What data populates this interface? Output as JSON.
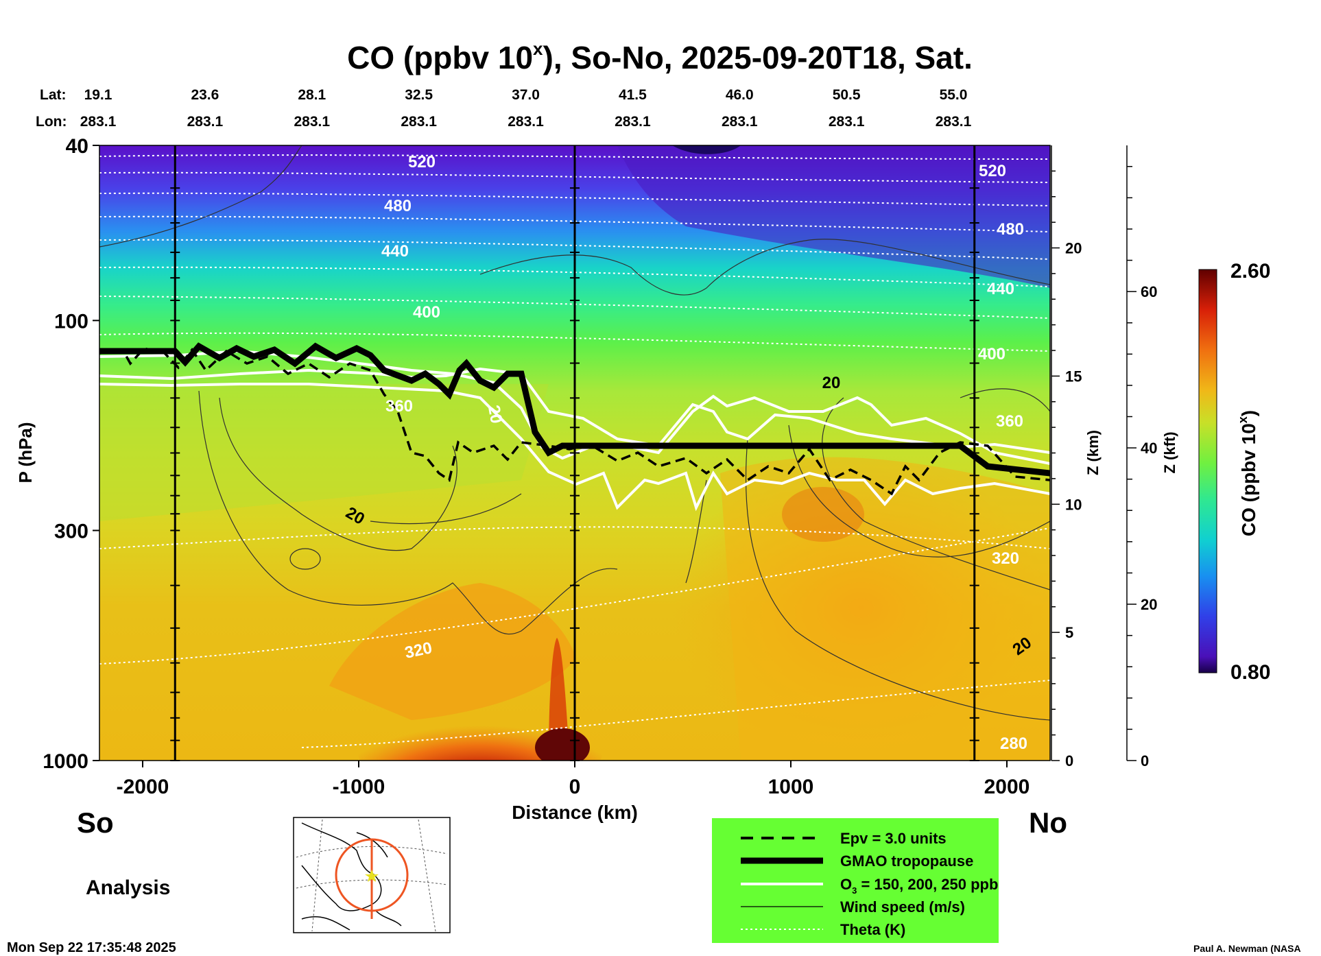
{
  "chart_data": {
    "type": "heatmap",
    "title": "CO (ppbv 10",
    "title_superscript": "x",
    "title_suffix": "), So-No, 2025-09-20T18, Sat.",
    "xlabel": "Distance (km)",
    "ylabel": "P (hPa)",
    "x_range": [
      -2200,
      2200
    ],
    "y_range_hpa": [
      1000,
      40
    ],
    "x_ticks": [
      -2000,
      -1000,
      0,
      1000,
      2000
    ],
    "x_tick_labels": [
      "-2000",
      "-1000",
      "0",
      "1000",
      "2000"
    ],
    "y_ticks": [
      40,
      100,
      300,
      1000
    ],
    "y_tick_labels": [
      "40",
      "100",
      "300",
      "1000"
    ],
    "z_km_label": "Z (km)",
    "z_km_ticks": [
      0,
      5,
      10,
      15,
      20
    ],
    "z_km_tick_labels": [
      "0",
      "5",
      "10",
      "15",
      "20"
    ],
    "z_kft_label": "Z (kft)",
    "z_kft_ticks": [
      0,
      20,
      40,
      60
    ],
    "z_kft_tick_labels": [
      "0",
      "20",
      "40",
      "60"
    ],
    "lat_label": "Lat:",
    "lon_label": "Lon:",
    "lat_values": [
      "19.1",
      "23.6",
      "28.1",
      "32.5",
      "37.0",
      "41.5",
      "46.0",
      "50.5",
      "55.0"
    ],
    "lon_values": [
      "283.1",
      "283.1",
      "283.1",
      "283.1",
      "283.1",
      "283.1",
      "283.1",
      "283.1",
      "283.1"
    ],
    "colorbar": {
      "label": "CO (ppbv 10",
      "label_superscript": "x",
      "label_suffix": ")",
      "min": 0.8,
      "max": 2.6,
      "min_label": "0.80",
      "max_label": "2.60"
    },
    "theta_contour_labels": [
      "520",
      "480",
      "440",
      "400",
      "360",
      "320",
      "280"
    ],
    "wind_contour_label": "20",
    "theta_contours_k": [
      280,
      320,
      360,
      400,
      440,
      480,
      520
    ],
    "wind_contours_ms": [
      20
    ],
    "o3_contours_ppb": [
      150,
      200,
      250
    ]
  },
  "left_endpoint": "So",
  "right_endpoint": "No",
  "analysis_label": "Analysis",
  "legend": {
    "items": [
      {
        "label": "Epv = 3.0 units",
        "style": "dashed"
      },
      {
        "label": "GMAO tropopause",
        "style": "thick"
      },
      {
        "label": "O",
        "sub": "3",
        "suffix": " = 150, 200, 250 ppb",
        "style": "white"
      },
      {
        "label": "Wind speed (m/s)",
        "style": "thin"
      },
      {
        "label": "Theta (K)",
        "style": "dotted"
      }
    ],
    "background": "#66ff33"
  },
  "timestamp": "Mon Sep 22 17:35:48 2025",
  "credit": "Paul A. Newman (NASA"
}
